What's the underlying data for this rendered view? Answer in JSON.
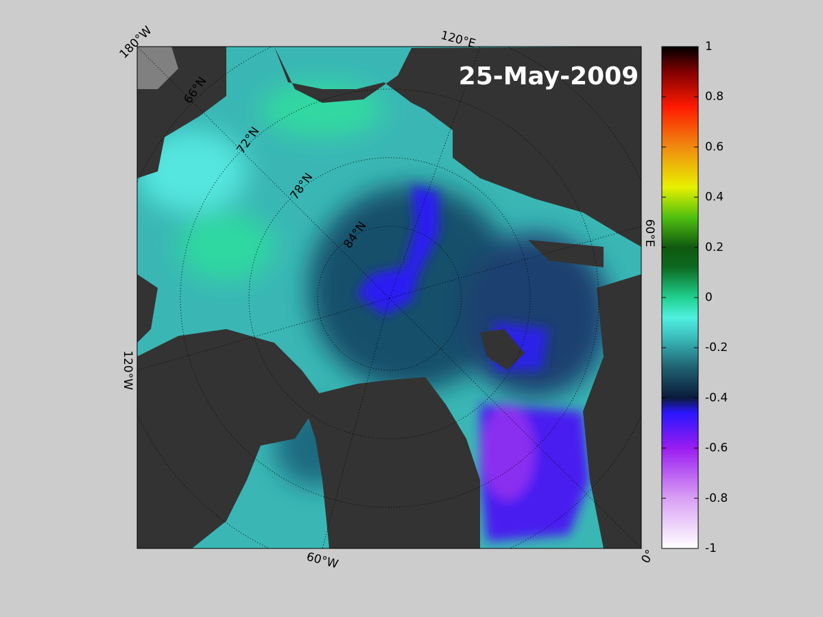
{
  "map": {
    "title": "25-May-2009",
    "lon_labels": [
      "180°W",
      "120°E",
      "60°E",
      "0°",
      "60°W",
      "120°W"
    ],
    "lat_labels": [
      "66°N",
      "72°N",
      "78°N",
      "84°N"
    ]
  },
  "colorbar": {
    "ylim": [
      -1,
      1
    ],
    "yticks": [
      1,
      0.8,
      0.6,
      0.4,
      0.2,
      0,
      -0.2,
      -0.4,
      -0.6,
      -0.8,
      -1
    ]
  }
}
